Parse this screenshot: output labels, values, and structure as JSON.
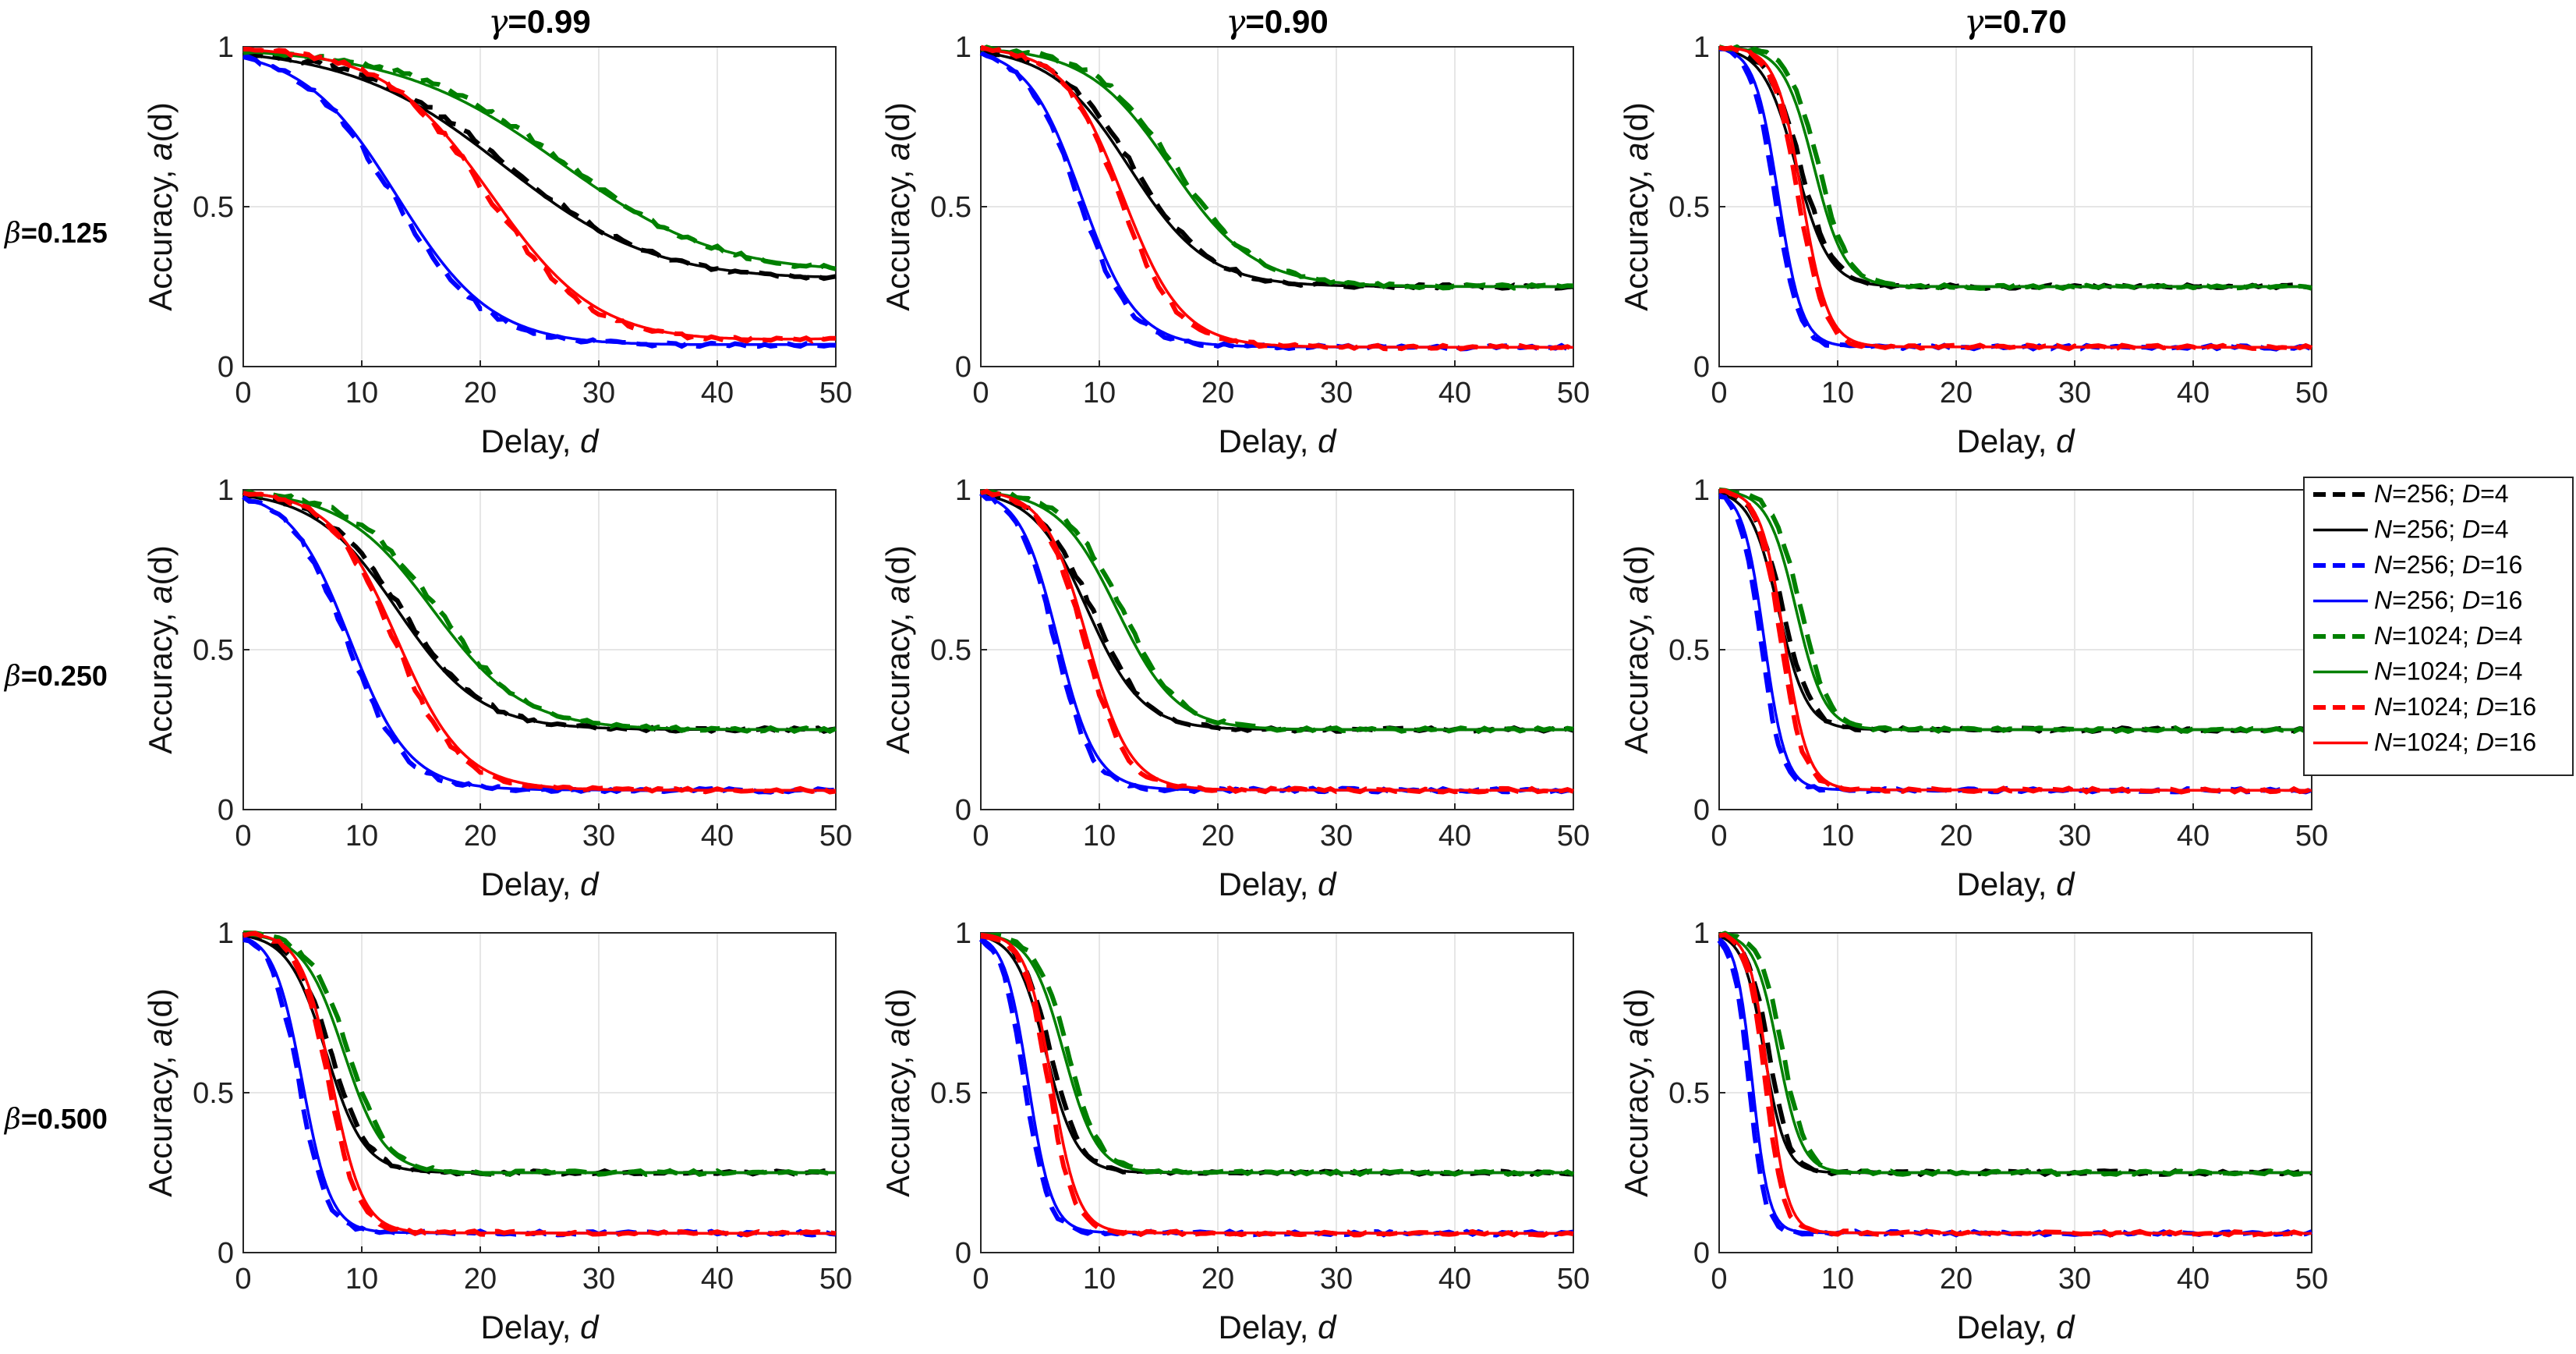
{
  "chart_data": {
    "type": "line",
    "layout": "3x3 small multiples",
    "column_params": [
      {
        "symbol": "γ",
        "value": "=0.99"
      },
      {
        "symbol": "γ",
        "value": "=0.90"
      },
      {
        "symbol": "γ",
        "value": "=0.70"
      }
    ],
    "row_params": [
      {
        "symbol": "β",
        "value": "=0.125"
      },
      {
        "symbol": "β",
        "value": "=0.250"
      },
      {
        "symbol": "β",
        "value": "=0.500"
      }
    ],
    "xlabel": {
      "text": "Delay, ",
      "var": "d"
    },
    "ylabel": {
      "text": "Accuracy, ",
      "var": "a",
      "suffix": "(d)"
    },
    "xlim": [
      0,
      50
    ],
    "ylim": [
      0,
      1
    ],
    "xticks": [
      0,
      10,
      20,
      30,
      40,
      50
    ],
    "yticks": [
      0,
      0.5,
      1
    ],
    "ytick_labels": [
      "0",
      "0.5",
      "1"
    ],
    "grid": true,
    "legend": {
      "placement": "right of middle-right panel",
      "entries": [
        {
          "N": "N",
          "n_val": "=256; ",
          "D": "D",
          "d_val": "=4",
          "color": "#000000",
          "style": "dashed"
        },
        {
          "N": "N",
          "n_val": "=256; ",
          "D": "D",
          "d_val": "=4",
          "color": "#000000",
          "style": "solid"
        },
        {
          "N": "N",
          "n_val": "=256; ",
          "D": "D",
          "d_val": "=16",
          "color": "#0000ff",
          "style": "dashed"
        },
        {
          "N": "N",
          "n_val": "=256; ",
          "D": "D",
          "d_val": "=16",
          "color": "#0000ff",
          "style": "solid"
        },
        {
          "N": "N",
          "n_val": "=1024; ",
          "D": "D",
          "d_val": "=4",
          "color": "#008000",
          "style": "dashed"
        },
        {
          "N": "N",
          "n_val": "=1024; ",
          "D": "D",
          "d_val": "=4",
          "color": "#008000",
          "style": "solid"
        },
        {
          "N": "N",
          "n_val": "=1024; ",
          "D": "D",
          "d_val": "=16",
          "color": "#ff0000",
          "style": "dashed"
        },
        {
          "N": "N",
          "n_val": "=1024; ",
          "D": "D",
          "d_val": "=16",
          "color": "#ff0000",
          "style": "solid"
        }
      ]
    },
    "series_model": "sigmoid decay: a(d) = floor + (1 - floor) / (1 + exp((d - midpoint) / width)); dashed = empirical, solid = theory",
    "series_order": [
      "N256_D4",
      "N256_D16",
      "N1024_D4",
      "N1024_D16"
    ],
    "series_colors": {
      "N256_D4": "#000000",
      "N256_D16": "#0000ff",
      "N1024_D4": "#008000",
      "N1024_D16": "#ff0000"
    },
    "series_floor": {
      "N256_D4": 0.25,
      "N256_D16": 0.0625,
      "N1024_D4": 0.25,
      "N1024_D16": 0.0625
    },
    "panels": [
      {
        "row": 0,
        "col": 0,
        "mid": {
          "N256_D4": 22,
          "N256_D16": 13,
          "N1024_D4": 27,
          "N1024_D16": 21
        },
        "width": {
          "N256_D4": 6.5,
          "N256_D16": 4.0,
          "N1024_D4": 7.0,
          "N1024_D16": 4.5
        },
        "end": {
          "N256_D4": 0.28,
          "N256_D16": 0.07,
          "N1024_D4": 0.31,
          "N1024_D16": 0.09
        }
      },
      {
        "row": 0,
        "col": 1,
        "mid": {
          "N256_D4": 12.5,
          "N256_D16": 8.5,
          "N1024_D4": 16,
          "N1024_D16": 12
        },
        "width": {
          "N256_D4": 3.3,
          "N256_D16": 2.3,
          "N1024_D4": 3.5,
          "N1024_D16": 2.5
        },
        "end": {
          "N256_D4": 0.25,
          "N256_D16": 0.06,
          "N1024_D4": 0.25,
          "N1024_D16": 0.06
        }
      },
      {
        "row": 0,
        "col": 2,
        "mid": {
          "N256_D4": 6.5,
          "N256_D16": 5,
          "N1024_D4": 8,
          "N1024_D16": 7
        },
        "width": {
          "N256_D4": 1.4,
          "N256_D16": 1.0,
          "N1024_D4": 1.3,
          "N1024_D16": 1.1
        },
        "end": {
          "N256_D4": 0.25,
          "N256_D16": 0.06,
          "N1024_D4": 0.25,
          "N1024_D16": 0.06
        }
      },
      {
        "row": 1,
        "col": 0,
        "mid": {
          "N256_D4": 13,
          "N256_D16": 9,
          "N1024_D4": 16,
          "N1024_D16": 13
        },
        "width": {
          "N256_D4": 3.5,
          "N256_D16": 2.5,
          "N1024_D4": 3.8,
          "N1024_D16": 2.8
        },
        "end": {
          "N256_D4": 0.25,
          "N256_D16": 0.06,
          "N1024_D4": 0.25,
          "N1024_D16": 0.06
        }
      },
      {
        "row": 1,
        "col": 1,
        "mid": {
          "N256_D4": 9,
          "N256_D16": 6.5,
          "N1024_D4": 11.5,
          "N1024_D16": 9
        },
        "width": {
          "N256_D4": 2.3,
          "N256_D16": 1.6,
          "N1024_D4": 2.5,
          "N1024_D16": 1.8
        },
        "end": {
          "N256_D4": 0.25,
          "N256_D16": 0.06,
          "N1024_D4": 0.25,
          "N1024_D16": 0.06
        }
      },
      {
        "row": 1,
        "col": 2,
        "mid": {
          "N256_D4": 5,
          "N256_D16": 3.8,
          "N1024_D4": 6.5,
          "N1024_D16": 5.5
        },
        "width": {
          "N256_D4": 1.2,
          "N256_D16": 0.9,
          "N1024_D4": 1.2,
          "N1024_D16": 1.0
        },
        "end": {
          "N256_D4": 0.25,
          "N256_D16": 0.06,
          "N1024_D4": 0.25,
          "N1024_D16": 0.06
        }
      },
      {
        "row": 2,
        "col": 0,
        "mid": {
          "N256_D4": 7,
          "N256_D16": 5,
          "N1024_D4": 8.5,
          "N1024_D16": 7.5
        },
        "width": {
          "N256_D4": 1.6,
          "N256_D16": 1.2,
          "N1024_D4": 1.7,
          "N1024_D16": 1.3
        },
        "end": {
          "N256_D4": 0.25,
          "N256_D16": 0.06,
          "N1024_D4": 0.25,
          "N1024_D16": 0.06
        }
      },
      {
        "row": 2,
        "col": 1,
        "mid": {
          "N256_D4": 5.5,
          "N256_D16": 4,
          "N1024_D4": 7,
          "N1024_D16": 6
        },
        "width": {
          "N256_D4": 1.3,
          "N256_D16": 1.0,
          "N1024_D4": 1.4,
          "N1024_D16": 1.1
        },
        "end": {
          "N256_D4": 0.25,
          "N256_D16": 0.06,
          "N1024_D4": 0.25,
          "N1024_D16": 0.06
        }
      },
      {
        "row": 2,
        "col": 2,
        "mid": {
          "N256_D4": 3.8,
          "N256_D16": 2.8,
          "N1024_D4": 5,
          "N1024_D16": 4.2
        },
        "width": {
          "N256_D4": 0.9,
          "N256_D16": 0.7,
          "N1024_D4": 1.0,
          "N1024_D16": 0.8
        },
        "end": {
          "N256_D4": 0.25,
          "N256_D16": 0.06,
          "N1024_D4": 0.25,
          "N1024_D16": 0.06
        }
      }
    ]
  }
}
